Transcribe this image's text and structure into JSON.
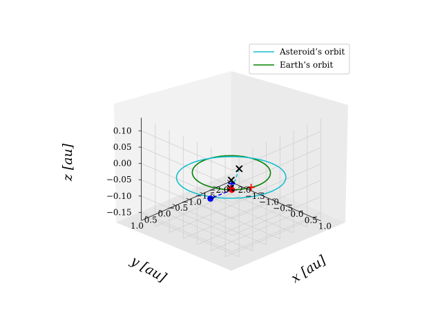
{
  "chart_data": {
    "type": "line3d",
    "title": "",
    "xlabel": "x [au]",
    "ylabel": "y [au]",
    "zlabel": "z [au]",
    "xlim": [
      -2.0,
      1.25
    ],
    "ylim": [
      -2.0,
      1.25
    ],
    "zlim": [
      -0.175,
      0.14
    ],
    "x_ticks": [
      "−2.0",
      "−1.5",
      "−1.0",
      "−0.5",
      "0.0",
      "0.5",
      "1.0"
    ],
    "y_ticks": [
      "−2.0",
      "−1.5",
      "−1.0",
      "−0.5",
      "0.0",
      "0.5",
      "1.0"
    ],
    "z_ticks": [
      "−0.15",
      "−0.10",
      "−0.05",
      "0.00",
      "0.05",
      "0.10"
    ],
    "x_tick_values": [
      -2.0,
      -1.5,
      -1.0,
      -0.5,
      0.0,
      0.5,
      1.0
    ],
    "y_tick_values": [
      -2.0,
      -1.5,
      -1.0,
      -0.5,
      0.0,
      0.5,
      1.0
    ],
    "z_tick_values": [
      -0.15,
      -0.1,
      -0.05,
      0.0,
      0.05,
      0.1
    ],
    "grid": true,
    "view": {
      "elev": 20,
      "azim": -135
    },
    "legend": {
      "position": "upper right",
      "entries": [
        {
          "label": "Asteroid’s orbit",
          "color": "#17becf"
        },
        {
          "label": "Earth’s orbit",
          "color": "#008000"
        }
      ]
    },
    "series": [
      {
        "name": "Asteroid’s orbit",
        "kind": "ellipse",
        "color": "#17becf",
        "center": [
          -0.25,
          -0.25,
          -0.033
        ],
        "semi_axes": [
          1.5,
          1.4
        ],
        "inclination_axis": "x=y",
        "z_amplitude": 0.142
      },
      {
        "name": "Earth’s orbit",
        "kind": "circle",
        "color": "#008000",
        "center": [
          0,
          0,
          0
        ],
        "radius": 1.0
      }
    ],
    "points": [
      {
        "role": "earth",
        "color": "#ff0000",
        "marker": "dot",
        "xyz": [
          0.71,
          0.71,
          0.0
        ]
      },
      {
        "role": "earth-ref",
        "color": "#ff0000",
        "marker": "plus",
        "xyz": [
          0.96,
          0.26,
          0.0
        ]
      },
      {
        "role": "asteroid",
        "color": "#0000ff",
        "marker": "dot",
        "xyz": [
          -0.65,
          0.1,
          -0.1
        ]
      },
      {
        "role": "asteroid-ref",
        "color": "#0000ff",
        "marker": "plus",
        "xyz": [
          0.66,
          0.66,
          0.015
        ]
      },
      {
        "role": "crossing",
        "color": "#000000",
        "marker": "x",
        "xyz": [
          1.05,
          0.79,
          0.08
        ]
      },
      {
        "role": "crossing",
        "color": "#000000",
        "marker": "x",
        "xyz": [
          -0.1,
          -0.1,
          -0.03
        ]
      },
      {
        "role": "crossing",
        "color": "#000000",
        "marker": "x",
        "xyz": [
          -1.25,
          -1.25,
          -0.14
        ]
      },
      {
        "role": "crossing-ref",
        "color": "#ff0000",
        "marker": "plus",
        "xyz": [
          -1.25,
          -1.25,
          -0.14
        ]
      }
    ],
    "segments": [
      {
        "from": 0,
        "to": 2,
        "color": "#0000ff",
        "style": "dashed"
      },
      {
        "from": 4,
        "to": 0,
        "color": "#17becf",
        "style": "dashed"
      },
      {
        "from": 5,
        "to": 6,
        "color": "#17becf",
        "style": "dashed"
      }
    ]
  }
}
